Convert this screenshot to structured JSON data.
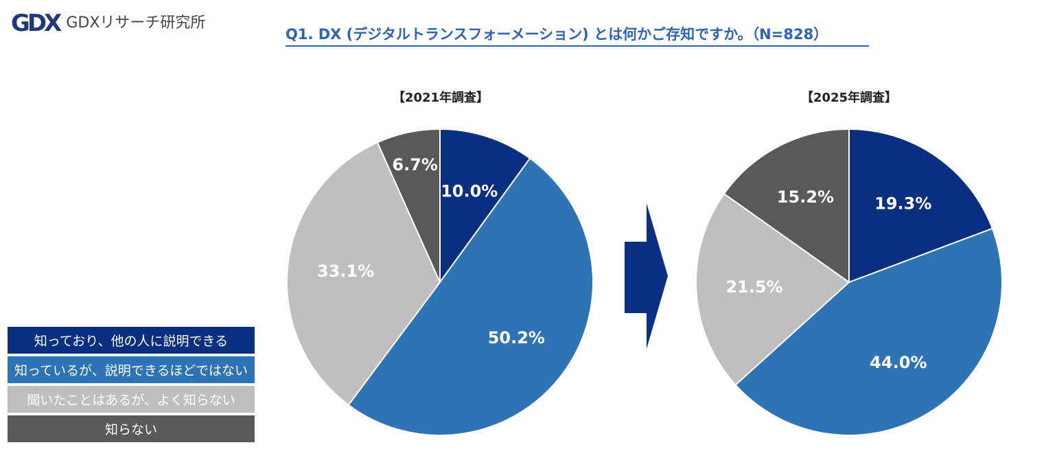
{
  "logo": {
    "mark": "GDX",
    "text": "GDXリサーチ研究所"
  },
  "title": "Q1. DX (デジタルトランスフォーメーション) とは何かご存知ですか。（N=828）",
  "legend": [
    {
      "label": "知っており、他の人に説明できる",
      "color": "#0a2f7f"
    },
    {
      "label": "知っているが、説明できるほどではない",
      "color": "#2e74b5"
    },
    {
      "label": "聞いたことはあるが、よく知らない",
      "color": "#bfbfbf"
    },
    {
      "label": "知らない",
      "color": "#595959"
    }
  ],
  "chart_data": [
    {
      "type": "pie",
      "title": "【2021年調査】",
      "categories": [
        "知っており、他の人に説明できる",
        "知っているが、説明できるほどではない",
        "聞いたことはあるが、よく知らない",
        "知らない"
      ],
      "values": [
        10.0,
        50.2,
        33.1,
        6.7
      ],
      "labels": [
        "10.0%",
        "50.2%",
        "33.1%",
        "6.7%"
      ],
      "colors": [
        "#0a2f7f",
        "#2e74b5",
        "#bfbfbf",
        "#595959"
      ]
    },
    {
      "type": "pie",
      "title": "【2025年調査】",
      "categories": [
        "知っており、他の人に説明できる",
        "知っているが、説明できるほどではない",
        "聞いたことはあるが、よく知らない",
        "知らない"
      ],
      "values": [
        19.3,
        44.0,
        21.5,
        15.2
      ],
      "labels": [
        "19.3%",
        "44.0%",
        "21.5%",
        "15.2%"
      ],
      "colors": [
        "#0a2f7f",
        "#2e74b5",
        "#bfbfbf",
        "#595959"
      ]
    }
  ]
}
